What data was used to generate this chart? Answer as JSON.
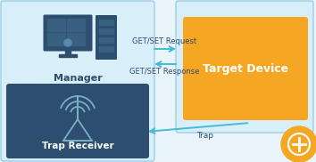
{
  "bg_color": "#eaf5fb",
  "left_outer_color": "#d8eef8",
  "left_outer_border": "#9dcce8",
  "trap_box_color": "#2d4e6e",
  "target_outer_color": "#d8eef8",
  "target_outer_border": "#9dcce8",
  "target_inner_color": "#f5a623",
  "arrow_color": "#45bcd4",
  "text_dark": "#2d4e6e",
  "text_white": "#ffffff",
  "icon_color": "#2d4e6e",
  "icon_screen_color": "#3a6080",
  "icon_detail_color": "#5a8ab0",
  "manager_label": "Manager",
  "trap_label": "Trap Receiver",
  "target_label": "Target Device",
  "arrow1_label": "GET/SET Request",
  "arrow2_label": "GET/SET Response",
  "arrow3_label": "Trap",
  "zoom_circle_color": "#f5a623",
  "figw": 3.54,
  "figh": 1.82,
  "dpi": 100
}
